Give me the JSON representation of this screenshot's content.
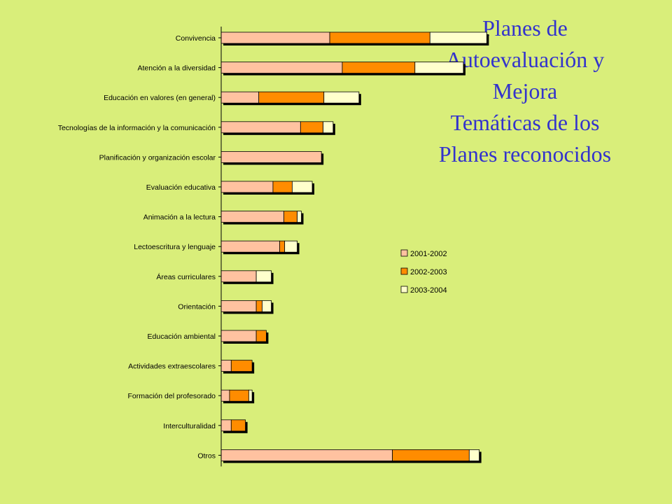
{
  "title_lines": [
    "Planes de",
    "Autoevaluación y",
    "Mejora",
    "Temáticas de los",
    "Planes reconocidos"
  ],
  "colors": {
    "background": "#d9ee7a",
    "title": "#3333cc",
    "series": [
      "#ffc2a0",
      "#ff8c00",
      "#ffffcc"
    ],
    "shadow": "#000000"
  },
  "chart_data": {
    "type": "bar",
    "orientation": "horizontal",
    "stacked": true,
    "title": "",
    "xlabel": "",
    "ylabel": "",
    "grid": false,
    "legend_position": "right",
    "categories": [
      "Convivencia",
      "Atención a la diversidad",
      "Educación en valores (en general)",
      "Tecnologías de la información y la comunicación",
      "Planificación y organización escolar",
      "Evaluación educativa",
      "Animación a la lectura",
      "Lectoescritura y lenguaje",
      "Áreas curriculares",
      "Orientación",
      "Educación ambiental",
      "Actividades extraescolares",
      "Formación del profesorado",
      "Interculturalidad",
      "Otros"
    ],
    "series": [
      {
        "name": "2001-2002",
        "values": [
          13,
          14.5,
          4.5,
          9.5,
          12,
          6.2,
          7.5,
          7,
          4.2,
          4.2,
          4.2,
          1.2,
          1,
          1.2,
          20.5
        ]
      },
      {
        "name": "2002-2003",
        "values": [
          12,
          8.7,
          7.8,
          2.7,
          0,
          2.3,
          1.6,
          0.6,
          0,
          0.7,
          1.2,
          2.5,
          2.3,
          1.7,
          9.2
        ]
      },
      {
        "name": "2003-2004",
        "values": [
          6.8,
          5.8,
          4.2,
          1.2,
          0,
          2.4,
          0.5,
          1.5,
          1.8,
          1.1,
          0,
          0,
          0.4,
          0,
          1.2
        ]
      }
    ]
  }
}
